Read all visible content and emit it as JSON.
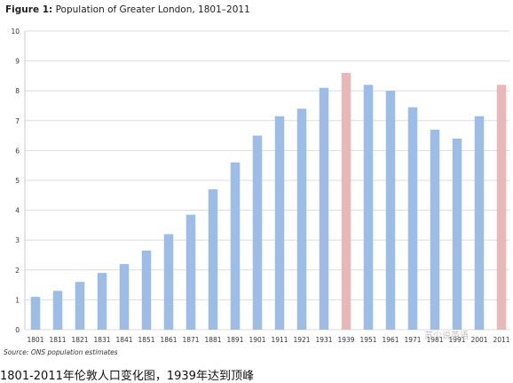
{
  "figure_label": "Figure 1:",
  "source_note": "Source: ONS population estimates",
  "caption": "1801-2011年伦敦人口变化图，1939年达到顶峰",
  "watermark": "苏少说英语",
  "colors": {
    "normal_bar": "#9dbde6",
    "highlight_bar": "#e8b8b8",
    "gridline": "#dddddd"
  },
  "chart_data": {
    "type": "bar",
    "title": "Population of Greater London, 1801–2011",
    "xlabel": "",
    "ylabel": "",
    "ylim": [
      0,
      10
    ],
    "yticks": [
      0,
      1,
      2,
      3,
      4,
      5,
      6,
      7,
      8,
      9,
      10
    ],
    "grid": true,
    "categories": [
      "1801",
      "1811",
      "1821",
      "1831",
      "1841",
      "1851",
      "1861",
      "1871",
      "1881",
      "1891",
      "1901",
      "1911",
      "1921",
      "1931",
      "1939",
      "1951",
      "1961",
      "1971",
      "1981",
      "1991",
      "2001",
      "2011"
    ],
    "values": [
      1.1,
      1.3,
      1.6,
      1.9,
      2.2,
      2.65,
      3.2,
      3.85,
      4.7,
      5.6,
      6.5,
      7.15,
      7.4,
      8.1,
      8.6,
      8.2,
      8.0,
      7.45,
      6.7,
      6.4,
      7.15,
      8.2
    ],
    "highlighted": [
      "1939",
      "2011"
    ]
  }
}
